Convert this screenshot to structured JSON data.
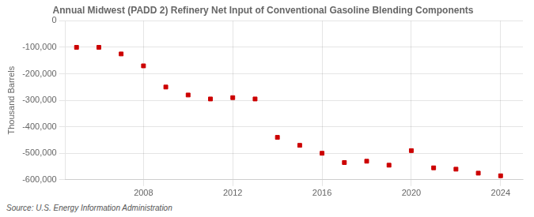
{
  "chart_data": {
    "type": "scatter",
    "title": "Annual Midwest (PADD 2) Refinery Net Input of Conventional Gasoline Blending Components",
    "ylabel": "Thousand Barrels",
    "source": "Source: U.S. Energy Information Administration",
    "x": [
      2005,
      2006,
      2007,
      2008,
      2009,
      2010,
      2011,
      2012,
      2013,
      2014,
      2015,
      2016,
      2017,
      2018,
      2019,
      2020,
      2021,
      2022,
      2023,
      2024
    ],
    "values": [
      -100000,
      -100000,
      -125000,
      -170000,
      -250000,
      -280000,
      -295000,
      -290000,
      -295000,
      -440000,
      -470000,
      -500000,
      -535000,
      -530000,
      -545000,
      -490000,
      -555000,
      -560000,
      -575000,
      -585000
    ],
    "color": "#cc0000",
    "marker": "square",
    "xlim": [
      2004.5,
      2025
    ],
    "xticks": [
      2008,
      2012,
      2016,
      2020,
      2024
    ],
    "ylim": [
      -600000,
      0
    ],
    "yticks": [
      0,
      {
        "value": -100000,
        "label": "-100,000"
      },
      {
        "value": -200000,
        "label": "-200,000"
      },
      {
        "value": -300000,
        "label": "-300,000"
      },
      {
        "value": -400000,
        "label": "-400,000"
      },
      {
        "value": -500000,
        "label": "-500,000"
      },
      {
        "value": -600000,
        "label": "-600,000"
      }
    ],
    "grid": true
  }
}
